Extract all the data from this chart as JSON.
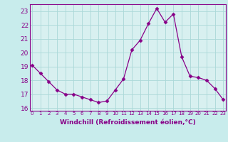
{
  "x": [
    0,
    1,
    2,
    3,
    4,
    5,
    6,
    7,
    8,
    9,
    10,
    11,
    12,
    13,
    14,
    15,
    16,
    17,
    18,
    19,
    20,
    21,
    22,
    23
  ],
  "y": [
    19.1,
    18.5,
    17.9,
    17.3,
    17.0,
    17.0,
    16.8,
    16.6,
    16.4,
    16.5,
    17.3,
    18.1,
    20.2,
    20.9,
    22.1,
    23.2,
    22.2,
    22.8,
    19.7,
    18.3,
    18.2,
    18.0,
    17.4,
    16.6
  ],
  "line_color": "#880088",
  "marker": "D",
  "marker_size": 2.5,
  "bg_color": "#c8ecec",
  "plot_bg_color": "#d8f0f0",
  "grid_color": "#aad8d8",
  "xlabel": "Windchill (Refroidissement éolien,°C)",
  "label_color": "#880088",
  "tick_color": "#880088",
  "ylim": [
    15.8,
    23.5
  ],
  "yticks": [
    16,
    17,
    18,
    19,
    20,
    21,
    22,
    23
  ],
  "xlim": [
    -0.3,
    23.3
  ],
  "xtick_labels": [
    "0",
    "1",
    "2",
    "3",
    "4",
    "5",
    "6",
    "7",
    "8",
    "9",
    "10",
    "11",
    "12",
    "13",
    "14",
    "15",
    "16",
    "17",
    "18",
    "19",
    "20",
    "21",
    "22",
    "23"
  ]
}
